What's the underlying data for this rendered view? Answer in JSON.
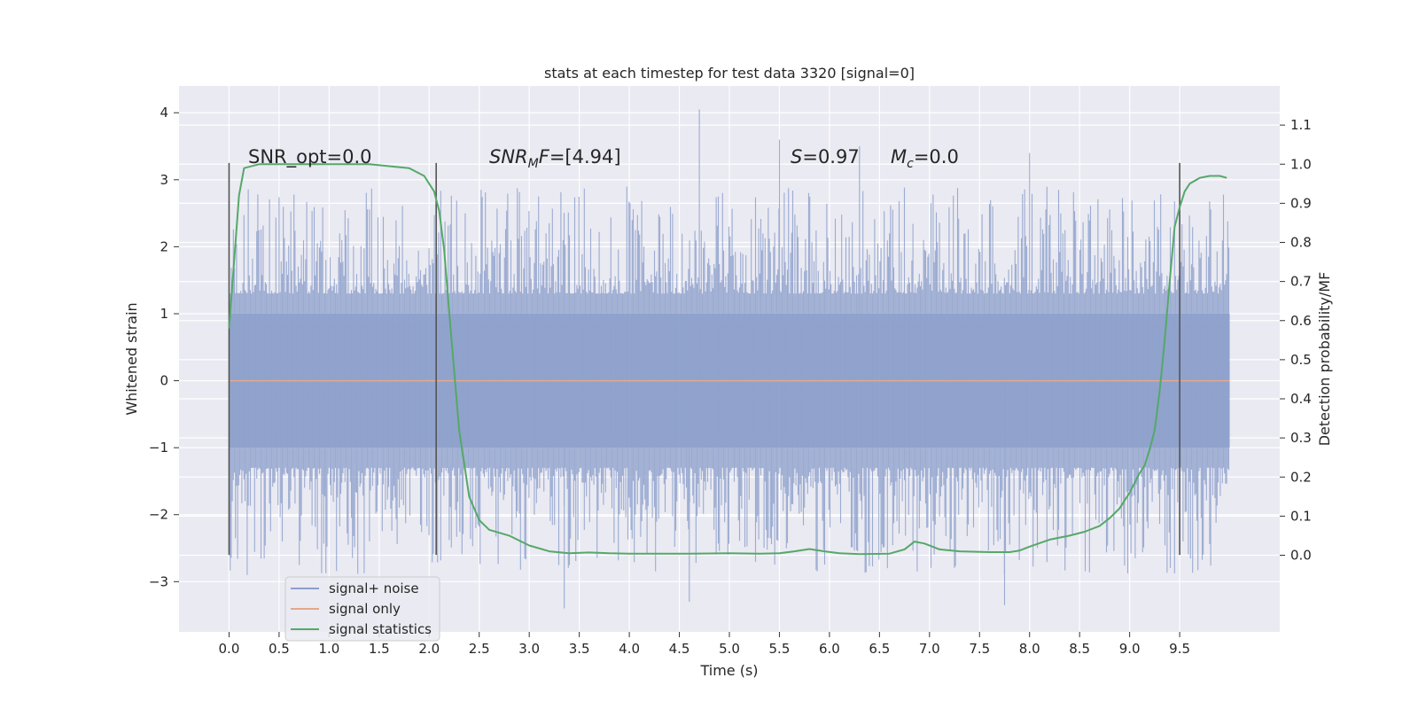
{
  "chart_data": {
    "type": "line",
    "title": "stats at each timestep for test data 3320 [signal=0]",
    "xlabel": "Time (s)",
    "ylabel": "Whitened strain",
    "y2label": "Detection probability/MF",
    "xlim": [
      -0.5,
      10.5
    ],
    "ylim": [
      -3.75,
      4.4
    ],
    "y2lim": [
      -0.196,
      1.2
    ],
    "xticks": [
      "0.0",
      "0.5",
      "1.0",
      "1.5",
      "2.0",
      "2.5",
      "3.0",
      "3.5",
      "4.0",
      "4.5",
      "5.0",
      "5.5",
      "6.0",
      "6.5",
      "7.0",
      "7.5",
      "8.0",
      "8.5",
      "9.0",
      "9.5"
    ],
    "yticks": [
      "4",
      "3",
      "2",
      "1",
      "0",
      "−1",
      "−2",
      "−3"
    ],
    "y2ticks": [
      "1.1",
      "1.0",
      "0.9",
      "0.8",
      "0.7",
      "0.6",
      "0.5",
      "0.4",
      "0.3",
      "0.2",
      "0.1",
      "0.0"
    ],
    "grid": true,
    "legend_position": "lower-left",
    "annotations": {
      "snr_opt": "SNR_opt=0.0",
      "snr_mf_name": "SNR",
      "snr_mf_sub": "M",
      "snr_mf_f": "F",
      "snr_mf_value": "=[4.94]",
      "s_name": "S",
      "s_value": "=0.97",
      "mc_name": "M",
      "mc_sub": "c",
      "mc_value": "=0.0"
    },
    "vlines_x": [
      0.0,
      2.07,
      9.5
    ],
    "vline_y_range": [
      -2.6,
      3.25
    ],
    "series": [
      {
        "name": "signal+ noise",
        "color": "#8da0cb",
        "axis": "left",
        "x_range": [
          0.0,
          10.0
        ],
        "envelope_peak_points": [
          {
            "x": 4.7,
            "y": 4.05
          },
          {
            "x": 8.0,
            "y": 3.4
          },
          {
            "x": 6.3,
            "y": 3.5
          },
          {
            "x": 5.5,
            "y": 3.6
          },
          {
            "x": 3.35,
            "y": -3.4
          },
          {
            "x": 7.75,
            "y": -3.35
          },
          {
            "x": 4.6,
            "y": -3.3
          }
        ]
      },
      {
        "name": "signal only",
        "color": "#e4a88a",
        "axis": "left",
        "x": [
          0.0,
          10.0
        ],
        "y": [
          0.0,
          0.0
        ]
      },
      {
        "name": "signal statistics",
        "color": "#55a868",
        "axis": "right",
        "x": [
          0.0,
          0.05,
          0.1,
          0.15,
          0.3,
          0.6,
          1.0,
          1.4,
          1.8,
          1.95,
          2.05,
          2.1,
          2.15,
          2.2,
          2.3,
          2.4,
          2.5,
          2.6,
          2.8,
          3.0,
          3.2,
          3.4,
          3.6,
          3.8,
          4.0,
          4.3,
          4.6,
          5.0,
          5.3,
          5.5,
          5.65,
          5.8,
          5.95,
          6.1,
          6.3,
          6.6,
          6.75,
          6.85,
          6.95,
          7.1,
          7.3,
          7.6,
          7.8,
          7.9,
          8.0,
          8.2,
          8.4,
          8.55,
          8.7,
          8.8,
          8.9,
          9.0,
          9.1,
          9.15,
          9.2,
          9.25,
          9.3,
          9.35,
          9.4,
          9.45,
          9.5,
          9.55,
          9.6,
          9.7,
          9.8,
          9.9,
          9.97
        ],
        "y": [
          0.58,
          0.75,
          0.92,
          0.99,
          1.0,
          1.0,
          1.0,
          1.0,
          0.99,
          0.97,
          0.93,
          0.88,
          0.78,
          0.62,
          0.32,
          0.15,
          0.09,
          0.065,
          0.05,
          0.025,
          0.01,
          0.005,
          0.007,
          0.005,
          0.004,
          0.004,
          0.004,
          0.005,
          0.004,
          0.005,
          0.01,
          0.016,
          0.01,
          0.005,
          0.003,
          0.004,
          0.015,
          0.035,
          0.03,
          0.015,
          0.01,
          0.008,
          0.008,
          0.012,
          0.022,
          0.04,
          0.05,
          0.06,
          0.075,
          0.095,
          0.12,
          0.16,
          0.21,
          0.23,
          0.27,
          0.32,
          0.42,
          0.55,
          0.7,
          0.84,
          0.89,
          0.93,
          0.95,
          0.965,
          0.97,
          0.97,
          0.965
        ]
      }
    ]
  }
}
